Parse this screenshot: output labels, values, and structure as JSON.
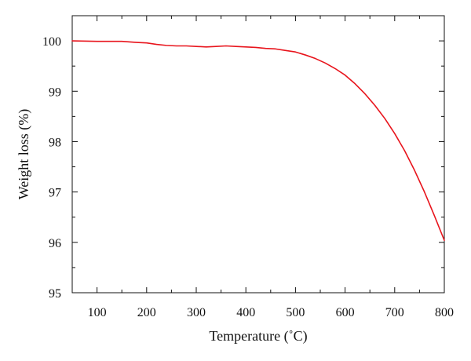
{
  "chart_data": {
    "type": "line",
    "xlabel": "Temperature (˚C)",
    "ylabel": "Weight loss (%)",
    "xlim": [
      50,
      800
    ],
    "ylim": [
      95,
      100.5
    ],
    "x_ticks": [
      100,
      200,
      300,
      400,
      500,
      600,
      700,
      800
    ],
    "y_ticks": [
      95,
      96,
      97,
      98,
      99,
      100
    ],
    "grid": false,
    "series": [
      {
        "color": "#e8141c",
        "x": [
          50,
          100,
          150,
          180,
          200,
          220,
          240,
          260,
          280,
          300,
          320,
          340,
          360,
          380,
          400,
          420,
          440,
          460,
          480,
          500,
          520,
          540,
          560,
          580,
          600,
          620,
          640,
          660,
          680,
          700,
          720,
          740,
          760,
          780,
          800
        ],
        "y": [
          100.0,
          99.99,
          99.99,
          99.97,
          99.96,
          99.93,
          99.91,
          99.9,
          99.9,
          99.89,
          99.88,
          99.89,
          99.9,
          99.89,
          99.88,
          99.87,
          99.85,
          99.84,
          99.81,
          99.78,
          99.72,
          99.65,
          99.56,
          99.45,
          99.32,
          99.15,
          98.95,
          98.72,
          98.46,
          98.16,
          97.82,
          97.43,
          97.0,
          96.53,
          96.04
        ]
      }
    ]
  }
}
